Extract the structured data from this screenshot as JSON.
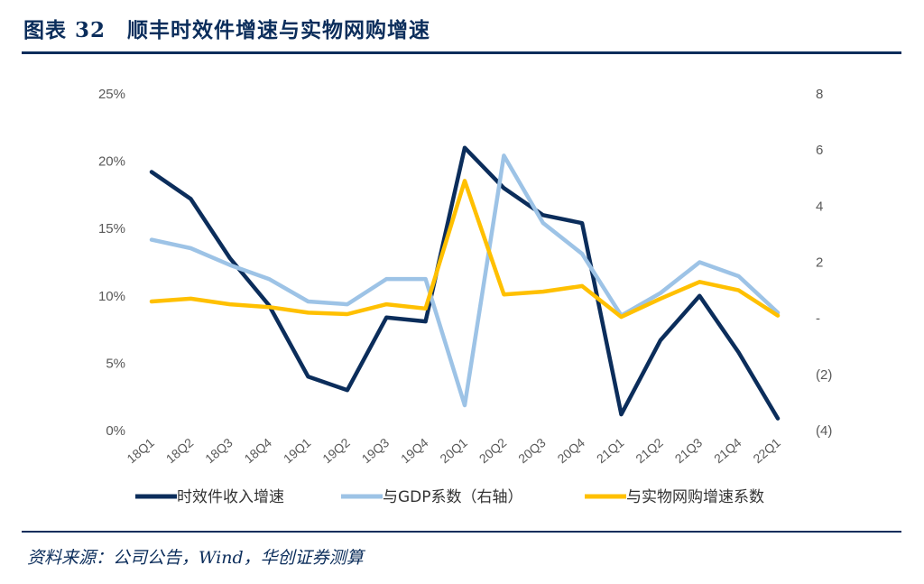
{
  "header": {
    "title": "图表 32　顺丰时效件增速与实物网购增速"
  },
  "footer": {
    "source": "资料来源：公司公告，Wind，华创证券测算"
  },
  "chart_data": {
    "type": "line",
    "categories": [
      "18Q1",
      "18Q2",
      "18Q3",
      "18Q4",
      "19Q1",
      "19Q2",
      "19Q3",
      "19Q4",
      "20Q1",
      "20Q2",
      "20Q3",
      "20Q4",
      "21Q1",
      "21Q2",
      "21Q3",
      "21Q4",
      "22Q1"
    ],
    "left_axis": {
      "ylim": [
        0,
        25
      ],
      "ticks": [
        "0%",
        "5%",
        "10%",
        "15%",
        "20%",
        "25%"
      ]
    },
    "right_axis": {
      "ylim": [
        -4,
        8
      ],
      "ticks": [
        "(4)",
        "(2)",
        "-",
        "2",
        "4",
        "6",
        "8"
      ]
    },
    "grid": false,
    "legend_position": "bottom",
    "series": [
      {
        "name": "时效件收入增速",
        "axis": "left",
        "color": "#0b2d5b",
        "values": [
          19.2,
          17.2,
          12.8,
          9.3,
          4.0,
          3.0,
          8.4,
          8.1,
          21.0,
          18.0,
          16.0,
          15.4,
          1.2,
          6.7,
          10.0,
          5.8,
          0.9
        ]
      },
      {
        "name": "与GDP系数（右轴）",
        "axis": "right",
        "color": "#9dc3e6",
        "values": [
          2.8,
          2.5,
          1.9,
          1.4,
          0.6,
          0.5,
          1.4,
          1.4,
          -3.1,
          5.8,
          3.4,
          2.3,
          0.1,
          0.9,
          2.0,
          1.5,
          0.2
        ]
      },
      {
        "name": "与实物网购增速系数",
        "axis": "right",
        "color": "#ffc000",
        "values": [
          0.6,
          0.7,
          0.5,
          0.4,
          0.2,
          0.15,
          0.5,
          0.35,
          4.9,
          0.85,
          0.95,
          1.15,
          0.05,
          0.7,
          1.3,
          1.0,
          0.1
        ]
      }
    ]
  }
}
